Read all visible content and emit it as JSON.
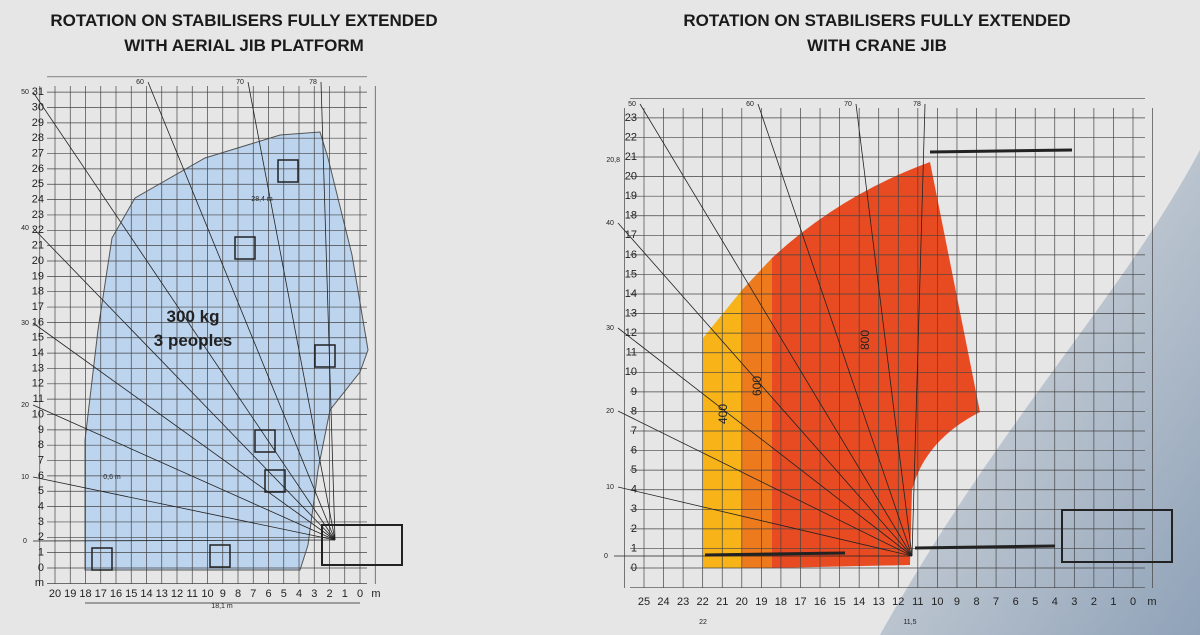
{
  "left": {
    "title": [
      "ROTATION ON STABILISERS FULLY EXTENDED",
      "WITH AERIAL JIB PLATFORM"
    ],
    "y_labels": [
      0,
      1,
      2,
      3,
      4,
      5,
      6,
      7,
      8,
      9,
      10,
      11,
      12,
      13,
      14,
      15,
      16,
      17,
      18,
      19,
      20,
      21,
      22,
      23,
      24,
      25,
      26,
      27,
      28,
      29,
      30,
      31
    ],
    "y_unit": "m",
    "x_labels": [
      20,
      19,
      18,
      17,
      16,
      15,
      14,
      13,
      12,
      11,
      10,
      9,
      8,
      7,
      6,
      5,
      4,
      3,
      2,
      1,
      0
    ],
    "x_unit": "m",
    "angle_labels": [
      0,
      10,
      20,
      30,
      40,
      50,
      60,
      70,
      78
    ],
    "annotations": {
      "jib_offset": "0,6 m",
      "max_height": "28,4 m",
      "max_reach": "18,1 m"
    },
    "load": [
      "300 kg",
      "3 peoples"
    ]
  },
  "right": {
    "title": [
      "ROTATION ON STABILISERS FULLY EXTENDED",
      "WITH CRANE JIB"
    ],
    "y_labels": [
      0,
      1,
      2,
      3,
      4,
      5,
      6,
      7,
      8,
      9,
      10,
      11,
      12,
      13,
      14,
      15,
      16,
      17,
      18,
      19,
      20,
      21,
      22,
      23
    ],
    "max_height": "20,8",
    "x_labels": [
      25,
      24,
      23,
      22,
      21,
      20,
      19,
      18,
      17,
      16,
      15,
      14,
      13,
      12,
      11,
      10,
      9,
      8,
      7,
      6,
      5,
      4,
      3,
      2,
      1,
      0
    ],
    "x_unit": "m",
    "reach_marks": [
      "22",
      "11,5"
    ],
    "angle_labels": [
      0,
      10,
      20,
      30,
      40,
      50,
      60,
      70,
      78
    ],
    "zones": [
      "400",
      "600",
      "800"
    ]
  }
}
